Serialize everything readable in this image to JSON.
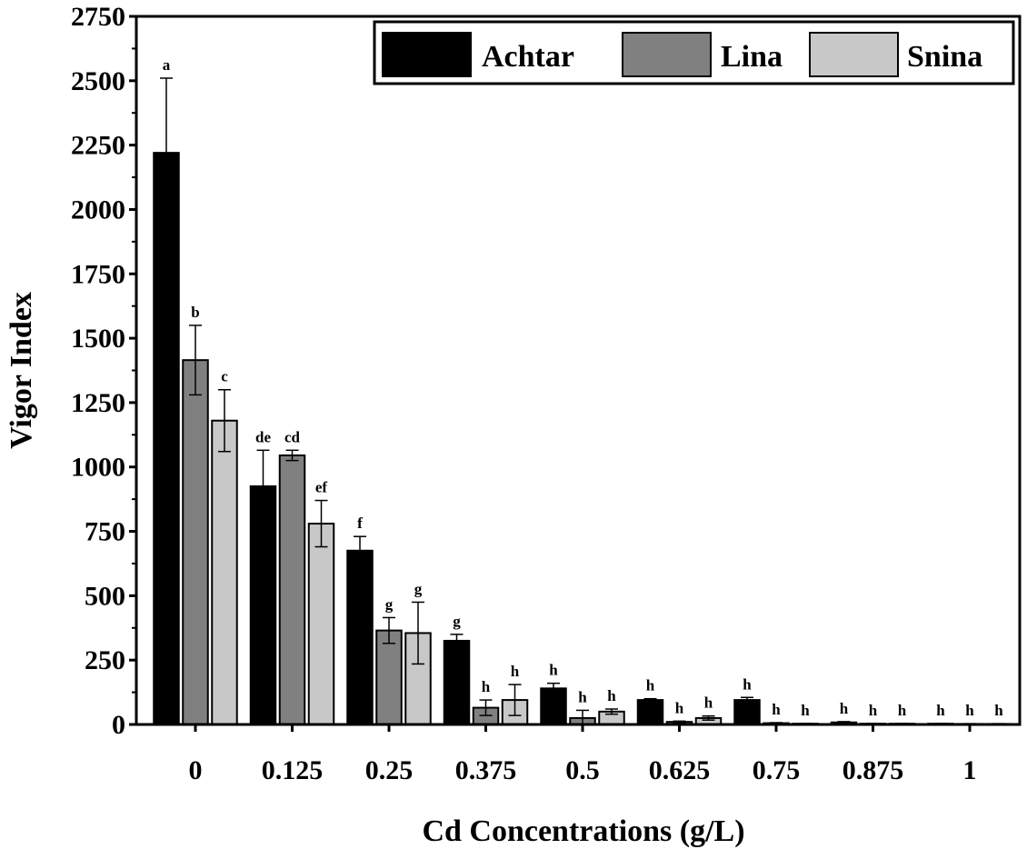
{
  "chart_data": {
    "type": "bar",
    "xlabel": "Cd Concentrations (g/L)",
    "ylabel": "Vigor Index",
    "ylim": [
      0,
      2750
    ],
    "yticks": [
      0,
      250,
      500,
      750,
      1000,
      1250,
      1500,
      1750,
      2000,
      2250,
      2500,
      2750
    ],
    "categories": [
      "0",
      "0.125",
      "0.25",
      "0.375",
      "0.5",
      "0.625",
      "0.75",
      "0.875",
      "1"
    ],
    "legend_position": "top-right",
    "series": [
      {
        "name": "Achtar",
        "color": "#000000",
        "values": [
          2220,
          925,
          675,
          325,
          140,
          95,
          95,
          8,
          3
        ],
        "errors": [
          290,
          140,
          55,
          25,
          20,
          5,
          10,
          3,
          1
        ],
        "letters": [
          "a",
          "de",
          "f",
          "g",
          "h",
          "h",
          "h",
          "h",
          "h"
        ]
      },
      {
        "name": "Lina",
        "color": "#808080",
        "values": [
          1415,
          1045,
          365,
          65,
          25,
          10,
          5,
          3,
          2
        ],
        "errors": [
          135,
          20,
          50,
          30,
          30,
          3,
          2,
          1,
          1
        ],
        "letters": [
          "b",
          "cd",
          "g",
          "h",
          "h",
          "h",
          "h",
          "h",
          "h"
        ]
      },
      {
        "name": "Snina",
        "color": "#c8c8c8",
        "values": [
          1180,
          780,
          355,
          95,
          50,
          25,
          3,
          3,
          2
        ],
        "errors": [
          120,
          90,
          120,
          60,
          10,
          8,
          1,
          1,
          1
        ],
        "letters": [
          "c",
          "ef",
          "g",
          "h",
          "h",
          "h",
          "h",
          "h",
          "h"
        ]
      }
    ]
  }
}
